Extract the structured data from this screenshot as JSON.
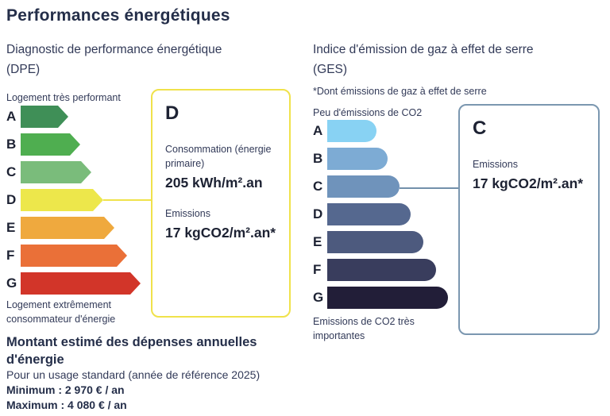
{
  "page": {
    "title": "Performances énergétiques"
  },
  "theme": {
    "text": "#323a58",
    "heading": "#242e49",
    "dark": "#1d2233"
  },
  "dpe": {
    "heading_line1": "Diagnostic de performance énergétique",
    "heading_line2": "(DPE)",
    "scale_top": "Logement très performant",
    "scale_bottom": "Logement extrêmement consommateur d'énergie",
    "callout": {
      "grade": "D",
      "border_color": "#f0e24b",
      "connector_color": "#f0e24b",
      "consumption_label": "Consommation (énergie primaire)",
      "consumption_value": "205 kWh/m².an",
      "emissions_label": "Emissions",
      "emissions_value": "17 kgCO2/m².an*"
    }
  },
  "ges": {
    "heading_line1": "Indice d'émission de gaz à effet de serre",
    "heading_line2": "(GES)",
    "footnote": "*Dont émissions de gaz à effet de serre",
    "scale_top": "Peu d'émissions de CO2",
    "scale_bottom": "Emissions de CO2 très importantes",
    "callout": {
      "grade": "C",
      "border_color": "#7b97b0",
      "connector_color": "#7390ab",
      "emissions_label": "Emissions",
      "emissions_value": "17 kgCO2/m².an*"
    }
  },
  "costs": {
    "heading_line1": "Montant estimé des dépenses annuelles",
    "heading_line2": "d'énergie",
    "subheading": "Pour un usage standard (année de référence 2025)",
    "minimum": "Minimum : 2 970 € / an",
    "maximum": "Maximum : 4 080 € / an"
  },
  "chart_data": [
    {
      "id": "dpe-scale",
      "type": "bar",
      "title": "Diagnostic de performance énergétique (DPE)",
      "categories": [
        "A",
        "B",
        "C",
        "D",
        "E",
        "F",
        "G"
      ],
      "colors": [
        "#3f8f57",
        "#4fae50",
        "#7abc7b",
        "#ede74b",
        "#efa93e",
        "#ea7038",
        "#d23529"
      ],
      "relative_widths": [
        60,
        75,
        89,
        104,
        118,
        134,
        151
      ],
      "bar_shape": "arrow",
      "selected_category": "D",
      "selected_values": {
        "consumption": "205 kWh/m².an",
        "emissions": "17 kgCO2/m².an*"
      },
      "scale_labels": [
        "Logement très performant",
        "Logement extrêmement consommateur d'énergie"
      ],
      "legend_position": "none",
      "grid": false
    },
    {
      "id": "ges-scale",
      "type": "bar",
      "title": "Indice d'émission de gaz à effet de serre (GES)",
      "categories": [
        "A",
        "B",
        "C",
        "D",
        "E",
        "F",
        "G"
      ],
      "colors": [
        "#88d2f3",
        "#7dabd4",
        "#6f93bb",
        "#55688f",
        "#4d5a7e",
        "#393d5d",
        "#221e38"
      ],
      "relative_widths": [
        62,
        76,
        91,
        105,
        121,
        137,
        152
      ],
      "bar_shape": "rounded",
      "selected_category": "C",
      "selected_values": {
        "emissions": "17 kgCO2/m².an*"
      },
      "scale_labels": [
        "Peu d'émissions de CO2",
        "Emissions de CO2 très importantes"
      ],
      "legend_position": "none",
      "grid": false
    }
  ]
}
